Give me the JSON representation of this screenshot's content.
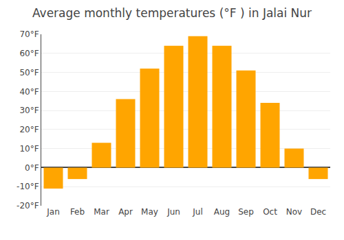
{
  "chart_data": {
    "type": "bar",
    "title": "Average monthly temperatures (°F ) in Jalai Nur",
    "categories": [
      "Jan",
      "Feb",
      "Mar",
      "Apr",
      "May",
      "Jun",
      "Jul",
      "Aug",
      "Sep",
      "Oct",
      "Nov",
      "Dec"
    ],
    "values": [
      -11,
      -6,
      13,
      36,
      52,
      64,
      69,
      64,
      51,
      34,
      10,
      -6
    ],
    "color": "#FFA500",
    "ylim": [
      -20,
      70
    ],
    "yticks": [
      {
        "value": -20,
        "label": "-20°F"
      },
      {
        "value": -10,
        "label": "-10°F"
      },
      {
        "value": 0,
        "label": "0°F"
      },
      {
        "value": 10,
        "label": "10°F"
      },
      {
        "value": 20,
        "label": "20°F"
      },
      {
        "value": 30,
        "label": "30°F"
      },
      {
        "value": 40,
        "label": "40°F"
      },
      {
        "value": 50,
        "label": "50°F"
      },
      {
        "value": 60,
        "label": "60°F"
      },
      {
        "value": 70,
        "label": "70°F"
      }
    ],
    "grid": true
  }
}
